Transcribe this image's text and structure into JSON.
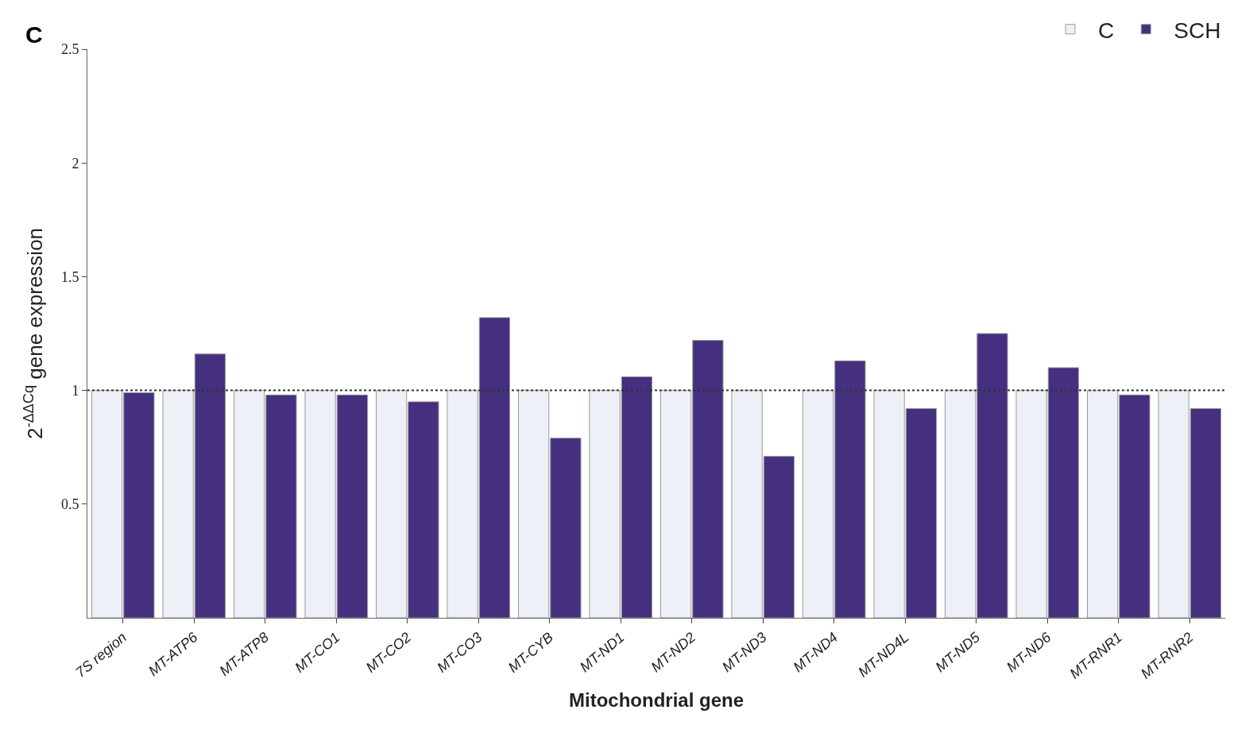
{
  "chart_data": {
    "type": "bar",
    "xlabel": "Mitochondrial gene",
    "ylabel": "2$^{-ΔΔCq}$ gene expression",
    "categories": [
      "7S region",
      "MT-ATP6",
      "MT-ATP8",
      "MT-CO1",
      "MT-CO2",
      "MT-CO3",
      "MT-CYB",
      "MT-ND1",
      "MT-ND2",
      "MT-ND3",
      "MT-ND4",
      "MT-ND4L",
      "MT-ND5",
      "MT-ND6",
      "MT-RNR1",
      "MT-RNR2"
    ],
    "series": [
      {
        "name": "C",
        "color": "#eef0f8",
        "values": [
          1,
          1,
          1,
          1,
          1,
          1,
          1,
          1,
          1,
          1,
          1,
          1,
          1,
          1,
          1,
          1
        ]
      },
      {
        "name": "SCH",
        "color": "#45307f",
        "values": [
          0.99,
          1.16,
          0.98,
          0.98,
          0.95,
          1.32,
          0.79,
          1.06,
          1.22,
          0.71,
          1.13,
          0.92,
          1.25,
          1.1,
          0.98,
          0.92
        ]
      }
    ],
    "ylim": [
      0,
      2.5
    ],
    "yticks": [
      0.5,
      1,
      1.5,
      2,
      2.5
    ],
    "ref_lines": [
      {
        "axis": "y",
        "value": 1,
        "line_style": "dotted",
        "color": "#333333"
      }
    ],
    "annotations": [
      "C"
    ],
    "legend": "top right"
  }
}
